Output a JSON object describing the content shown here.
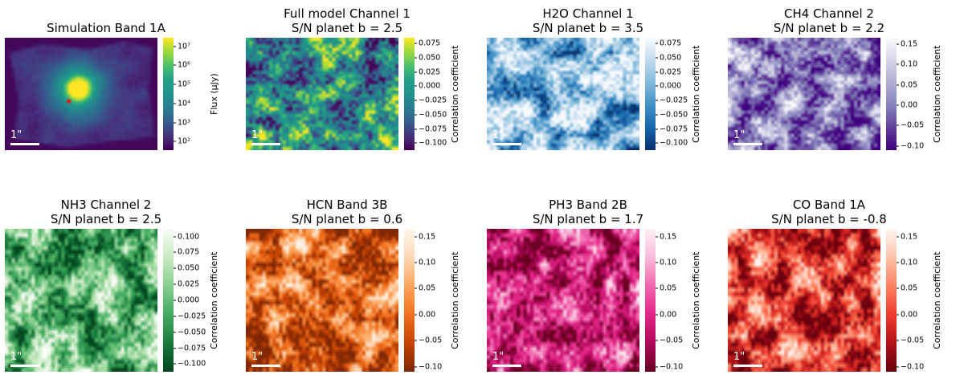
{
  "figure": {
    "background": "#ffffff",
    "text_color": "#000000"
  },
  "colormaps": {
    "viridis": [
      [
        0,
        "#440154"
      ],
      [
        0.13,
        "#46327e"
      ],
      [
        0.25,
        "#365c8d"
      ],
      [
        0.38,
        "#277f8e"
      ],
      [
        0.5,
        "#21918c"
      ],
      [
        0.63,
        "#1fa187"
      ],
      [
        0.75,
        "#4ac16d"
      ],
      [
        0.88,
        "#a0da39"
      ],
      [
        1,
        "#fde725"
      ]
    ],
    "blues": [
      [
        0,
        "#08306b"
      ],
      [
        0.2,
        "#1664ab"
      ],
      [
        0.4,
        "#4191c6"
      ],
      [
        0.6,
        "#81badb"
      ],
      [
        0.8,
        "#c3daee"
      ],
      [
        1,
        "#f7fbff"
      ]
    ],
    "purples": [
      [
        0,
        "#3f007d"
      ],
      [
        0.2,
        "#61409b"
      ],
      [
        0.4,
        "#8683bd"
      ],
      [
        0.6,
        "#aeadd3"
      ],
      [
        0.8,
        "#d6d6e9"
      ],
      [
        1,
        "#fcfbfd"
      ]
    ],
    "greens": [
      [
        0,
        "#00441b"
      ],
      [
        0.2,
        "#1a7b3e"
      ],
      [
        0.4,
        "#41ab5d"
      ],
      [
        0.6,
        "#86cf8c"
      ],
      [
        0.8,
        "#c9eac2"
      ],
      [
        1,
        "#f7fcf5"
      ]
    ],
    "oranges": [
      [
        0,
        "#7f2704"
      ],
      [
        0.2,
        "#c54102"
      ],
      [
        0.4,
        "#f1711d"
      ],
      [
        0.6,
        "#fda55e"
      ],
      [
        0.8,
        "#fdd8b3"
      ],
      [
        1,
        "#fff5eb"
      ]
    ],
    "pinkred": [
      [
        0,
        "#67001f"
      ],
      [
        0.22,
        "#b60a60"
      ],
      [
        0.42,
        "#e7298a"
      ],
      [
        0.62,
        "#f06eb1"
      ],
      [
        0.8,
        "#f9bcd9"
      ],
      [
        1,
        "#fdeff5"
      ]
    ],
    "reds": [
      [
        0,
        "#67000d"
      ],
      [
        0.2,
        "#b11218"
      ],
      [
        0.4,
        "#ef3b2c"
      ],
      [
        0.6,
        "#fc8161"
      ],
      [
        0.8,
        "#fcc3a9"
      ],
      [
        1,
        "#fff5f0"
      ]
    ]
  },
  "chart_data": [
    {
      "id": "simulation",
      "type": "heatmap",
      "title": "Simulation Band 1A",
      "subtitle": "",
      "colorbar_label": "Flux (μJy)",
      "colormap": "viridis",
      "scale": "log",
      "vmin": 1.55,
      "vmax": 7.45,
      "ticks": [
        {
          "v": 7,
          "label": "10⁷"
        },
        {
          "v": 6,
          "label": "10⁶"
        },
        {
          "v": 5,
          "label": "10⁵"
        },
        {
          "v": 4,
          "label": "10⁴"
        },
        {
          "v": 3,
          "label": "10³"
        },
        {
          "v": 2,
          "label": "10²"
        }
      ],
      "scalebar_label": "1\"",
      "seed": 11,
      "marker": {
        "name": "planet-b",
        "glyph": "✱",
        "color": "#e31a1c",
        "x": 0.42,
        "y": 0.58
      }
    },
    {
      "id": "full-model-channel-1",
      "type": "heatmap",
      "title": "Full model Channel 1",
      "subtitle": "S/N planet b = 2.5",
      "sn_planet_b": 2.5,
      "colorbar_label": "Correlation coefficient",
      "colormap": "viridis",
      "scale": "linear",
      "vmin": -0.112,
      "vmax": 0.085,
      "ticks": [
        {
          "v": 0.075,
          "label": "0.075"
        },
        {
          "v": 0.05,
          "label": "0.050"
        },
        {
          "v": 0.025,
          "label": "0.025"
        },
        {
          "v": 0,
          "label": "0.000"
        },
        {
          "v": -0.025,
          "label": "−0.025"
        },
        {
          "v": -0.05,
          "label": "−0.050"
        },
        {
          "v": -0.075,
          "label": "−0.075"
        },
        {
          "v": -0.1,
          "label": "−0.100"
        }
      ],
      "scalebar_label": "1\"",
      "seed": 22
    },
    {
      "id": "h2o-channel-1",
      "type": "heatmap",
      "title": "H2O Channel 1",
      "subtitle": "S/N planet b = 3.5",
      "sn_planet_b": 3.5,
      "colorbar_label": "Correlation coefficient",
      "colormap": "blues",
      "scale": "linear",
      "vmin": -0.112,
      "vmax": 0.085,
      "ticks": [
        {
          "v": 0.075,
          "label": "0.075"
        },
        {
          "v": 0.05,
          "label": "0.050"
        },
        {
          "v": 0.025,
          "label": "0.025"
        },
        {
          "v": 0,
          "label": "0.000"
        },
        {
          "v": -0.025,
          "label": "−0.025"
        },
        {
          "v": -0.05,
          "label": "−0.050"
        },
        {
          "v": -0.075,
          "label": "−0.075"
        },
        {
          "v": -0.1,
          "label": "−0.100"
        }
      ],
      "scalebar_label": "1\"",
      "seed": 33
    },
    {
      "id": "ch4-channel-2",
      "type": "heatmap",
      "title": "CH4 Channel 2",
      "subtitle": "S/N planet b = 2.2",
      "sn_planet_b": 2.2,
      "colorbar_label": "Correlation coefficient",
      "colormap": "purples",
      "scale": "linear",
      "vmin": -0.11,
      "vmax": 0.165,
      "ticks": [
        {
          "v": 0.15,
          "label": "0.15"
        },
        {
          "v": 0.1,
          "label": "0.10"
        },
        {
          "v": 0.05,
          "label": "0.05"
        },
        {
          "v": 0,
          "label": "0.00"
        },
        {
          "v": -0.05,
          "label": "−0.05"
        },
        {
          "v": -0.1,
          "label": "−0.10"
        }
      ],
      "scalebar_label": "1\"",
      "seed": 44
    },
    {
      "id": "nh3-channel-2",
      "type": "heatmap",
      "title": "NH3 Channel 2",
      "subtitle": "S/N planet b = 2.5",
      "sn_planet_b": 2.5,
      "colorbar_label": "Correlation coefficient",
      "colormap": "greens",
      "scale": "linear",
      "vmin": -0.112,
      "vmax": 0.112,
      "ticks": [
        {
          "v": 0.1,
          "label": "0.100"
        },
        {
          "v": 0.075,
          "label": "0.075"
        },
        {
          "v": 0.05,
          "label": "0.050"
        },
        {
          "v": 0.025,
          "label": "0.025"
        },
        {
          "v": 0,
          "label": "0.000"
        },
        {
          "v": -0.025,
          "label": "−0.025"
        },
        {
          "v": -0.05,
          "label": "−0.050"
        },
        {
          "v": -0.075,
          "label": "−0.075"
        },
        {
          "v": -0.1,
          "label": "−0.100"
        }
      ],
      "scalebar_label": "1\"",
      "seed": 55
    },
    {
      "id": "hcn-band-3b",
      "type": "heatmap",
      "title": "HCN Band 3B",
      "subtitle": "S/N planet b = 0.6",
      "sn_planet_b": 0.6,
      "colorbar_label": "Correlation coefficient",
      "colormap": "oranges",
      "scale": "linear",
      "vmin": -0.11,
      "vmax": 0.165,
      "ticks": [
        {
          "v": 0.15,
          "label": "0.15"
        },
        {
          "v": 0.1,
          "label": "0.10"
        },
        {
          "v": 0.05,
          "label": "0.05"
        },
        {
          "v": 0,
          "label": "0.00"
        },
        {
          "v": -0.05,
          "label": "−0.05"
        },
        {
          "v": -0.1,
          "label": "−0.10"
        }
      ],
      "scalebar_label": "1\"",
      "seed": 66
    },
    {
      "id": "ph3-band-2b",
      "type": "heatmap",
      "title": "PH3 Band 2B",
      "subtitle": "S/N planet b = 1.7",
      "sn_planet_b": 1.7,
      "colorbar_label": "Correlation coefficient",
      "colormap": "pinkred",
      "scale": "linear",
      "vmin": -0.11,
      "vmax": 0.165,
      "ticks": [
        {
          "v": 0.15,
          "label": "0.15"
        },
        {
          "v": 0.1,
          "label": "0.10"
        },
        {
          "v": 0.05,
          "label": "0.05"
        },
        {
          "v": 0,
          "label": "0.00"
        },
        {
          "v": -0.05,
          "label": "−0.05"
        },
        {
          "v": -0.1,
          "label": "−0.10"
        }
      ],
      "scalebar_label": "1\"",
      "seed": 77
    },
    {
      "id": "co-band-1a",
      "type": "heatmap",
      "title": "CO Band 1A",
      "subtitle": "S/N planet b = -0.8",
      "sn_planet_b": -0.8,
      "colorbar_label": "Correlation coefficient",
      "colormap": "reds",
      "scale": "linear",
      "vmin": -0.11,
      "vmax": 0.165,
      "ticks": [
        {
          "v": 0.15,
          "label": "0.15"
        },
        {
          "v": 0.1,
          "label": "0.10"
        },
        {
          "v": 0.05,
          "label": "0.05"
        },
        {
          "v": 0,
          "label": "0.00"
        },
        {
          "v": -0.05,
          "label": "−0.05"
        },
        {
          "v": -0.1,
          "label": "−0.10"
        }
      ],
      "scalebar_label": "1\"",
      "seed": 88
    }
  ]
}
